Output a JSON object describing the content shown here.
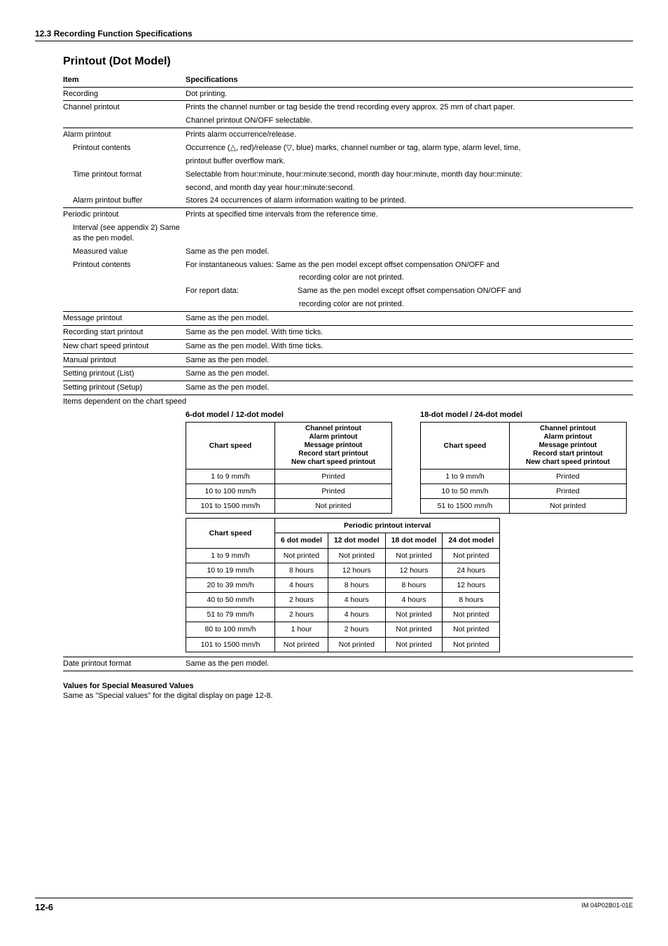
{
  "header": "12.3  Recording Function Specifications",
  "title": "Printout (Dot Model)",
  "headers": {
    "item": "Item",
    "spec": "Specifications"
  },
  "rows": {
    "recording": {
      "item": "Recording",
      "spec": "Dot printing."
    },
    "channel_printout": {
      "item": "Channel printout",
      "l1": "Prints the channel number or tag beside the trend recording every approx. 25 mm of chart paper.",
      "l2": "Channel printout ON/OFF selectable."
    },
    "alarm_printout": {
      "item": "Alarm printout",
      "spec": "Prints alarm occurrence/release."
    },
    "printout_contents": {
      "item": "Printout contents",
      "l1a": "Occurrence (",
      "l1b": ", red)/release (",
      "l1c": ", blue) marks, channel number or tag, alarm type, alarm level, time,",
      "l2": "printout buffer overflow mark."
    },
    "time_pf": {
      "item": "Time printout format",
      "l1": "Selectable from hour:minute, hour:minute:second, month day hour:minute, month day hour:minute:",
      "l2": "second, and month day year hour:minute:second."
    },
    "alarm_buf": {
      "item": "Alarm printout buffer",
      "spec": "Stores 24 occurrences of alarm information waiting to be printed."
    },
    "periodic": {
      "item": "Periodic printout",
      "spec": "Prints at specified time intervals from the reference time."
    },
    "interval": {
      "item": "Interval (see  appendix 2)",
      "spec": "Same as the pen model."
    },
    "measured": {
      "item": "Measured value",
      "spec": "Same as the pen model."
    },
    "printout_contents2": {
      "item": "Printout contents",
      "l1": "For instantaneous values: Same as the pen model except offset compensation ON/OFF and",
      "l2": "recording color are not printed.",
      "l3a": "For report data:",
      "l3b": "Same as the pen model except offset compensation ON/OFF and",
      "l4": "recording color are not printed."
    },
    "message": {
      "item": "Message printout",
      "spec": "Same as the pen model."
    },
    "rec_start": {
      "item": "Recording start printout",
      "spec": "Same as the pen model. With time ticks."
    },
    "new_chart": {
      "item": "New chart speed printout",
      "spec": "Same as the pen model. With time ticks."
    },
    "manual": {
      "item": "Manual printout",
      "spec": "Same as the pen model."
    },
    "set_list": {
      "item": "Setting printout (List)",
      "spec": "Same as the pen model."
    },
    "set_setup": {
      "item": "Setting printout (Setup)",
      "spec": "Same as the pen model."
    }
  },
  "dep_label": "Items dependent on the chart speed",
  "tblA": {
    "title": "6-dot model / 12-dot model",
    "h1": "Chart speed",
    "h2": "Channel printout\nAlarm printout\nMessage printout\nRecord start printout\nNew chart speed printout",
    "r": [
      [
        "1 to 9 mm/h",
        "Printed"
      ],
      [
        "10 to 100 mm/h",
        "Printed"
      ],
      [
        "101 to 1500 mm/h",
        "Not printed"
      ]
    ]
  },
  "tblB": {
    "title": "18-dot model / 24-dot model",
    "h1": "Chart speed",
    "h2": "Channel printout\nAlarm printout\nMessage printout\nRecord start printout\nNew chart speed printout",
    "r": [
      [
        "1 to 9 mm/h",
        "Printed"
      ],
      [
        "10 to 50 mm/h",
        "Printed"
      ],
      [
        "51 to 1500 mm/h",
        "Not printed"
      ]
    ]
  },
  "tblC": {
    "h_cs": "Chart speed",
    "h_span": "Periodic printout interval",
    "cols": [
      "6 dot model",
      "12 dot model",
      "18 dot model",
      "24 dot model"
    ],
    "rows": [
      [
        "1 to 9 mm/h",
        "Not printed",
        "Not printed",
        "Not printed",
        "Not printed"
      ],
      [
        "10 to 19 mm/h",
        "8 hours",
        "12 hours",
        "12 hours",
        "24 hours"
      ],
      [
        "20 to 39 mm/h",
        "4 hours",
        "8 hours",
        "8 hours",
        "12 hours"
      ],
      [
        "40 to 50 mm/h",
        "2 hours",
        "4 hours",
        "4 hours",
        "8 hours"
      ],
      [
        "51 to 79 mm/h",
        "2 hours",
        "4 hours",
        "Not printed",
        "Not printed"
      ],
      [
        "80 to 100 mm/h",
        "1 hour",
        "2 hours",
        "Not printed",
        "Not printed"
      ],
      [
        "101 to 1500 mm/h",
        "Not printed",
        "Not printed",
        "Not printed",
        "Not printed"
      ]
    ]
  },
  "date_pf": {
    "item": "Date printout format",
    "spec": "Same as the pen model."
  },
  "values_heading": "Values for Special Measured Values",
  "values_text": "Same as \"Special values\" for the digital display on page 12-8.",
  "footer": {
    "page": "12-6",
    "doc": "IM 04P02B01-01E"
  }
}
